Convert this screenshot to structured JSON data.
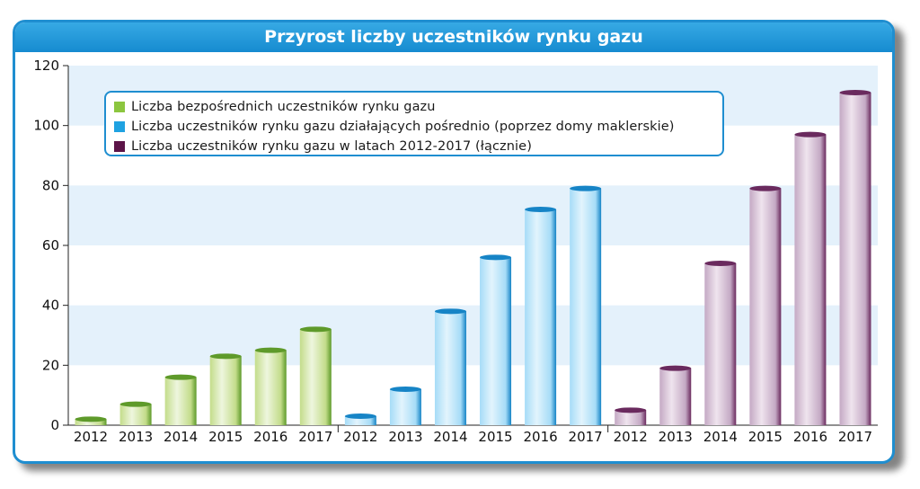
{
  "chart_data": {
    "type": "bar",
    "title": "Przyrost liczby uczestników rynku gazu",
    "xlabel": "",
    "ylabel": "",
    "ylim": [
      0,
      120
    ],
    "yticks": [
      0,
      20,
      40,
      60,
      80,
      100,
      120
    ],
    "grid": "alternating horizontal bands",
    "legend_position": "top-left",
    "categories": [
      "2012",
      "2013",
      "2014",
      "2015",
      "2016",
      "2017"
    ],
    "series": [
      {
        "name": "Liczba bezpośrednich uczestników rynku gazu",
        "color": "#8cc63f",
        "values": [
          2,
          7,
          16,
          23,
          25,
          32
        ]
      },
      {
        "name": "Liczba uczestników rynku gazu działających pośrednio (poprzez domy maklerskie)",
        "color": "#1fa2e1",
        "values": [
          3,
          12,
          38,
          56,
          72,
          79
        ]
      },
      {
        "name": "Liczba uczestników rynku gazu w latach 2012-2017 (łącznie)",
        "color": "#5c1448",
        "values": [
          5,
          19,
          54,
          79,
          97,
          111
        ]
      }
    ]
  }
}
